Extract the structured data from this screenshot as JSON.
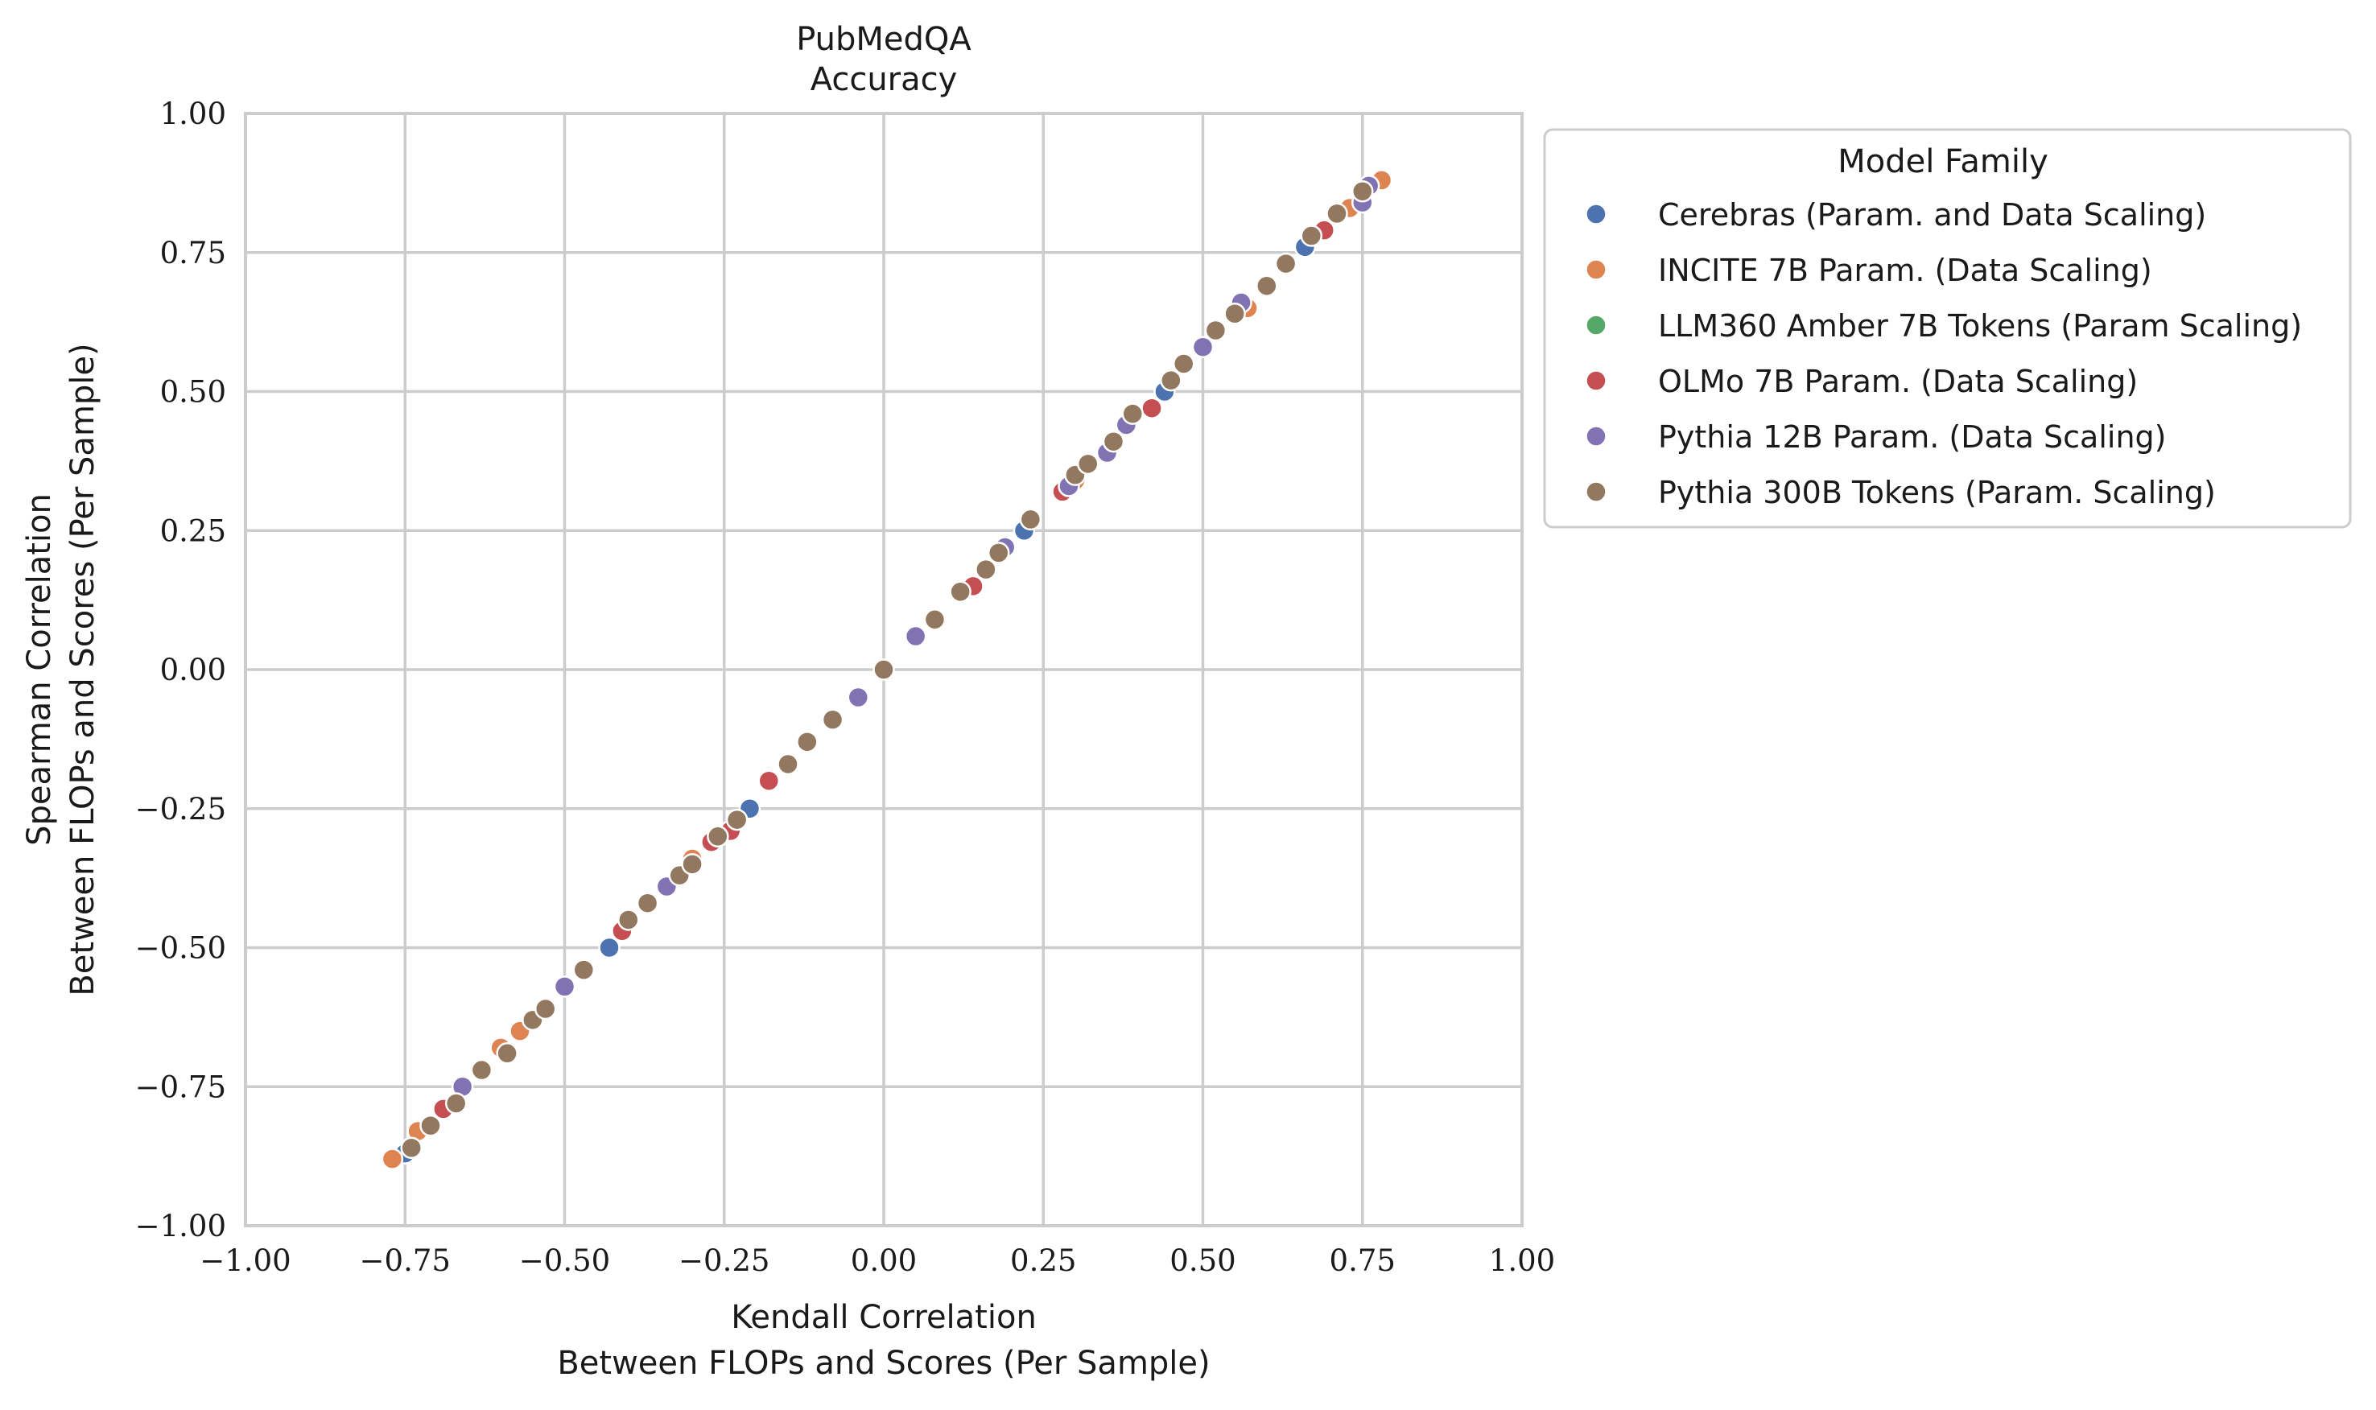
{
  "chart_data": {
    "type": "scatter",
    "title_line1": "PubMedQA",
    "title_line2": "Accuracy",
    "xlabel_line1": "Kendall Correlation",
    "xlabel_line2": "Between FLOPs and Scores (Per Sample)",
    "ylabel_line1": "Spearman Correlation",
    "ylabel_line2": "Between FLOPs and Scores (Per Sample)",
    "xlim": [
      -1.0,
      1.0
    ],
    "ylim": [
      -1.0,
      1.0
    ],
    "xticks": [
      -1.0,
      -0.75,
      -0.5,
      -0.25,
      0.0,
      0.25,
      0.5,
      0.75,
      1.0
    ],
    "yticks": [
      -1.0,
      -0.75,
      -0.5,
      -0.25,
      0.0,
      0.25,
      0.5,
      0.75,
      1.0
    ],
    "xtick_labels": [
      "−1.00",
      "−0.75",
      "−0.50",
      "−0.25",
      "0.00",
      "0.25",
      "0.50",
      "0.75",
      "1.00"
    ],
    "ytick_labels": [
      "−1.00",
      "−0.75",
      "−0.50",
      "−0.25",
      "0.00",
      "0.25",
      "0.50",
      "0.75",
      "1.00"
    ],
    "grid": true,
    "legend_title": "Model Family",
    "legend_position": "outside-right-top",
    "series": [
      {
        "name": "Cerebras (Param. and Data Scaling)",
        "color": "#4c72b0",
        "points": [
          [
            -0.75,
            -0.87
          ],
          [
            -0.43,
            -0.5
          ],
          [
            -0.21,
            -0.25
          ],
          [
            0.22,
            0.25
          ],
          [
            0.44,
            0.5
          ],
          [
            0.66,
            0.76
          ]
        ]
      },
      {
        "name": "INCITE 7B Param. (Data Scaling)",
        "color": "#dd8452",
        "points": [
          [
            -0.77,
            -0.88
          ],
          [
            -0.73,
            -0.83
          ],
          [
            -0.6,
            -0.68
          ],
          [
            -0.57,
            -0.65
          ],
          [
            -0.3,
            -0.34
          ],
          [
            0.3,
            0.34
          ],
          [
            0.57,
            0.65
          ],
          [
            0.73,
            0.83
          ],
          [
            0.78,
            0.88
          ]
        ]
      },
      {
        "name": "LLM360 Amber 7B Tokens (Param Scaling)",
        "color": "#55a868",
        "points": []
      },
      {
        "name": "OLMo 7B Param. (Data Scaling)",
        "color": "#c44e52",
        "points": [
          [
            -0.69,
            -0.79
          ],
          [
            -0.41,
            -0.47
          ],
          [
            -0.27,
            -0.31
          ],
          [
            -0.24,
            -0.29
          ],
          [
            -0.18,
            -0.2
          ],
          [
            0.14,
            0.15
          ],
          [
            0.28,
            0.32
          ],
          [
            0.42,
            0.47
          ],
          [
            0.69,
            0.79
          ]
        ]
      },
      {
        "name": "Pythia 12B Param. (Data Scaling)",
        "color": "#8172b3",
        "points": [
          [
            -0.66,
            -0.75
          ],
          [
            -0.5,
            -0.57
          ],
          [
            -0.34,
            -0.39
          ],
          [
            -0.04,
            -0.05
          ],
          [
            0.05,
            0.06
          ],
          [
            0.19,
            0.22
          ],
          [
            0.29,
            0.33
          ],
          [
            0.35,
            0.39
          ],
          [
            0.38,
            0.44
          ],
          [
            0.5,
            0.58
          ],
          [
            0.56,
            0.66
          ],
          [
            0.75,
            0.84
          ],
          [
            0.76,
            0.87
          ]
        ]
      },
      {
        "name": "Pythia 300B Tokens (Param. Scaling)",
        "color": "#937860",
        "points": [
          [
            -0.74,
            -0.86
          ],
          [
            -0.71,
            -0.82
          ],
          [
            -0.67,
            -0.78
          ],
          [
            -0.63,
            -0.72
          ],
          [
            -0.59,
            -0.69
          ],
          [
            -0.55,
            -0.63
          ],
          [
            -0.53,
            -0.61
          ],
          [
            -0.47,
            -0.54
          ],
          [
            -0.4,
            -0.45
          ],
          [
            -0.37,
            -0.42
          ],
          [
            -0.32,
            -0.37
          ],
          [
            -0.3,
            -0.35
          ],
          [
            -0.26,
            -0.3
          ],
          [
            -0.23,
            -0.27
          ],
          [
            -0.15,
            -0.17
          ],
          [
            -0.12,
            -0.13
          ],
          [
            -0.08,
            -0.09
          ],
          [
            0.0,
            0.0
          ],
          [
            0.08,
            0.09
          ],
          [
            0.12,
            0.14
          ],
          [
            0.16,
            0.18
          ],
          [
            0.18,
            0.21
          ],
          [
            0.23,
            0.27
          ],
          [
            0.3,
            0.35
          ],
          [
            0.32,
            0.37
          ],
          [
            0.36,
            0.41
          ],
          [
            0.39,
            0.46
          ],
          [
            0.45,
            0.52
          ],
          [
            0.47,
            0.55
          ],
          [
            0.52,
            0.61
          ],
          [
            0.55,
            0.64
          ],
          [
            0.6,
            0.69
          ],
          [
            0.63,
            0.73
          ],
          [
            0.67,
            0.78
          ],
          [
            0.71,
            0.82
          ],
          [
            0.75,
            0.86
          ]
        ]
      }
    ]
  }
}
